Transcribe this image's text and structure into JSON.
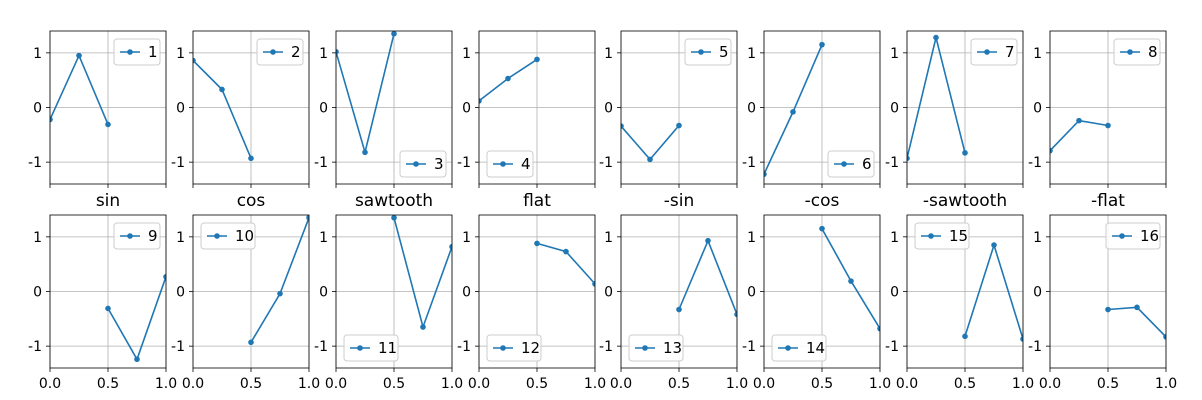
{
  "chart_data": {
    "type": "line",
    "grid": true,
    "line_color": "#1f77b4",
    "tick_labels": {
      "x": [
        "0.0",
        "0.5",
        "1.0"
      ],
      "y": [
        "-1",
        "0",
        "1"
      ]
    },
    "panels": [
      {
        "legend": "1",
        "legend_loc": "upper right",
        "xlim": [
          0,
          1
        ],
        "ylim": [
          -1.4,
          1.4
        ],
        "x": [
          0,
          0.25,
          0.5
        ],
        "y": [
          -0.22,
          0.95,
          -0.31
        ]
      },
      {
        "legend": "2",
        "legend_loc": "upper right",
        "xlim": [
          0,
          1
        ],
        "ylim": [
          -1.4,
          1.4
        ],
        "x": [
          0,
          0.25,
          0.5
        ],
        "y": [
          0.86,
          0.33,
          -0.93
        ]
      },
      {
        "legend": "3",
        "legend_loc": "lower right",
        "xlim": [
          0,
          1
        ],
        "ylim": [
          -1.4,
          1.4
        ],
        "x": [
          0,
          0.25,
          0.5
        ],
        "y": [
          1.02,
          -0.82,
          1.35
        ]
      },
      {
        "legend": "4",
        "legend_loc": "lower left",
        "xlim": [
          0,
          1
        ],
        "ylim": [
          -1.4,
          1.4
        ],
        "x": [
          0,
          0.25,
          0.5
        ],
        "y": [
          0.12,
          0.53,
          0.88
        ]
      },
      {
        "legend": "5",
        "legend_loc": "upper right",
        "xlim": [
          0,
          1
        ],
        "ylim": [
          -1.4,
          1.4
        ],
        "x": [
          0,
          0.25,
          0.5
        ],
        "y": [
          -0.34,
          -0.95,
          -0.33
        ]
      },
      {
        "legend": "6",
        "legend_loc": "lower right",
        "xlim": [
          0,
          1
        ],
        "ylim": [
          -1.4,
          1.4
        ],
        "x": [
          0,
          0.25,
          0.5
        ],
        "y": [
          -1.22,
          -0.08,
          1.15
        ]
      },
      {
        "legend": "7",
        "legend_loc": "upper right",
        "xlim": [
          0,
          1
        ],
        "ylim": [
          -1.4,
          1.4
        ],
        "x": [
          0,
          0.25,
          0.5
        ],
        "y": [
          -0.93,
          1.28,
          -0.83
        ]
      },
      {
        "legend": "8",
        "legend_loc": "upper right",
        "xlim": [
          0,
          1
        ],
        "ylim": [
          -1.4,
          1.4
        ],
        "x": [
          0,
          0.25,
          0.5
        ],
        "y": [
          -0.79,
          -0.24,
          -0.33
        ]
      },
      {
        "title": "sin",
        "legend": "9",
        "legend_loc": "upper right",
        "xlim": [
          0,
          1
        ],
        "ylim": [
          -1.4,
          1.4
        ],
        "x": [
          0.5,
          0.75,
          1.0
        ],
        "y": [
          -0.31,
          -1.24,
          0.27
        ]
      },
      {
        "title": "cos",
        "legend": "10",
        "legend_loc": "upper left",
        "xlim": [
          0,
          1
        ],
        "ylim": [
          -1.4,
          1.4
        ],
        "x": [
          0.5,
          0.75,
          1.0
        ],
        "y": [
          -0.93,
          -0.04,
          1.35
        ]
      },
      {
        "title": "sawtooth",
        "legend": "11",
        "legend_loc": "lower left",
        "xlim": [
          0,
          1
        ],
        "ylim": [
          -1.4,
          1.4
        ],
        "x": [
          0.5,
          0.75,
          1.0
        ],
        "y": [
          1.35,
          -0.65,
          0.82
        ]
      },
      {
        "title": "flat",
        "legend": "12",
        "legend_loc": "lower left",
        "xlim": [
          0,
          1
        ],
        "ylim": [
          -1.4,
          1.4
        ],
        "x": [
          0.5,
          0.75,
          1.0
        ],
        "y": [
          0.88,
          0.73,
          0.14
        ]
      },
      {
        "title": "-sin",
        "legend": "13",
        "legend_loc": "lower left",
        "xlim": [
          0,
          1
        ],
        "ylim": [
          -1.4,
          1.4
        ],
        "x": [
          0.5,
          0.75,
          1.0
        ],
        "y": [
          -0.33,
          0.93,
          -0.42
        ]
      },
      {
        "title": "-cos",
        "legend": "14",
        "legend_loc": "lower left",
        "xlim": [
          0,
          1
        ],
        "ylim": [
          -1.4,
          1.4
        ],
        "x": [
          0.5,
          0.75,
          1.0
        ],
        "y": [
          1.15,
          0.19,
          -0.68
        ]
      },
      {
        "title": "-sawtooth",
        "legend": "15",
        "legend_loc": "upper left",
        "xlim": [
          0,
          1
        ],
        "ylim": [
          -1.4,
          1.4
        ],
        "x": [
          0.5,
          0.75,
          1.0
        ],
        "y": [
          -0.82,
          0.85,
          -0.87
        ]
      },
      {
        "title": "-flat",
        "legend": "16",
        "legend_loc": "upper right",
        "xlim": [
          0,
          1
        ],
        "ylim": [
          -1.4,
          1.4
        ],
        "x": [
          0.5,
          0.75,
          1.0
        ],
        "y": [
          -0.33,
          -0.29,
          -0.83
        ]
      }
    ]
  }
}
